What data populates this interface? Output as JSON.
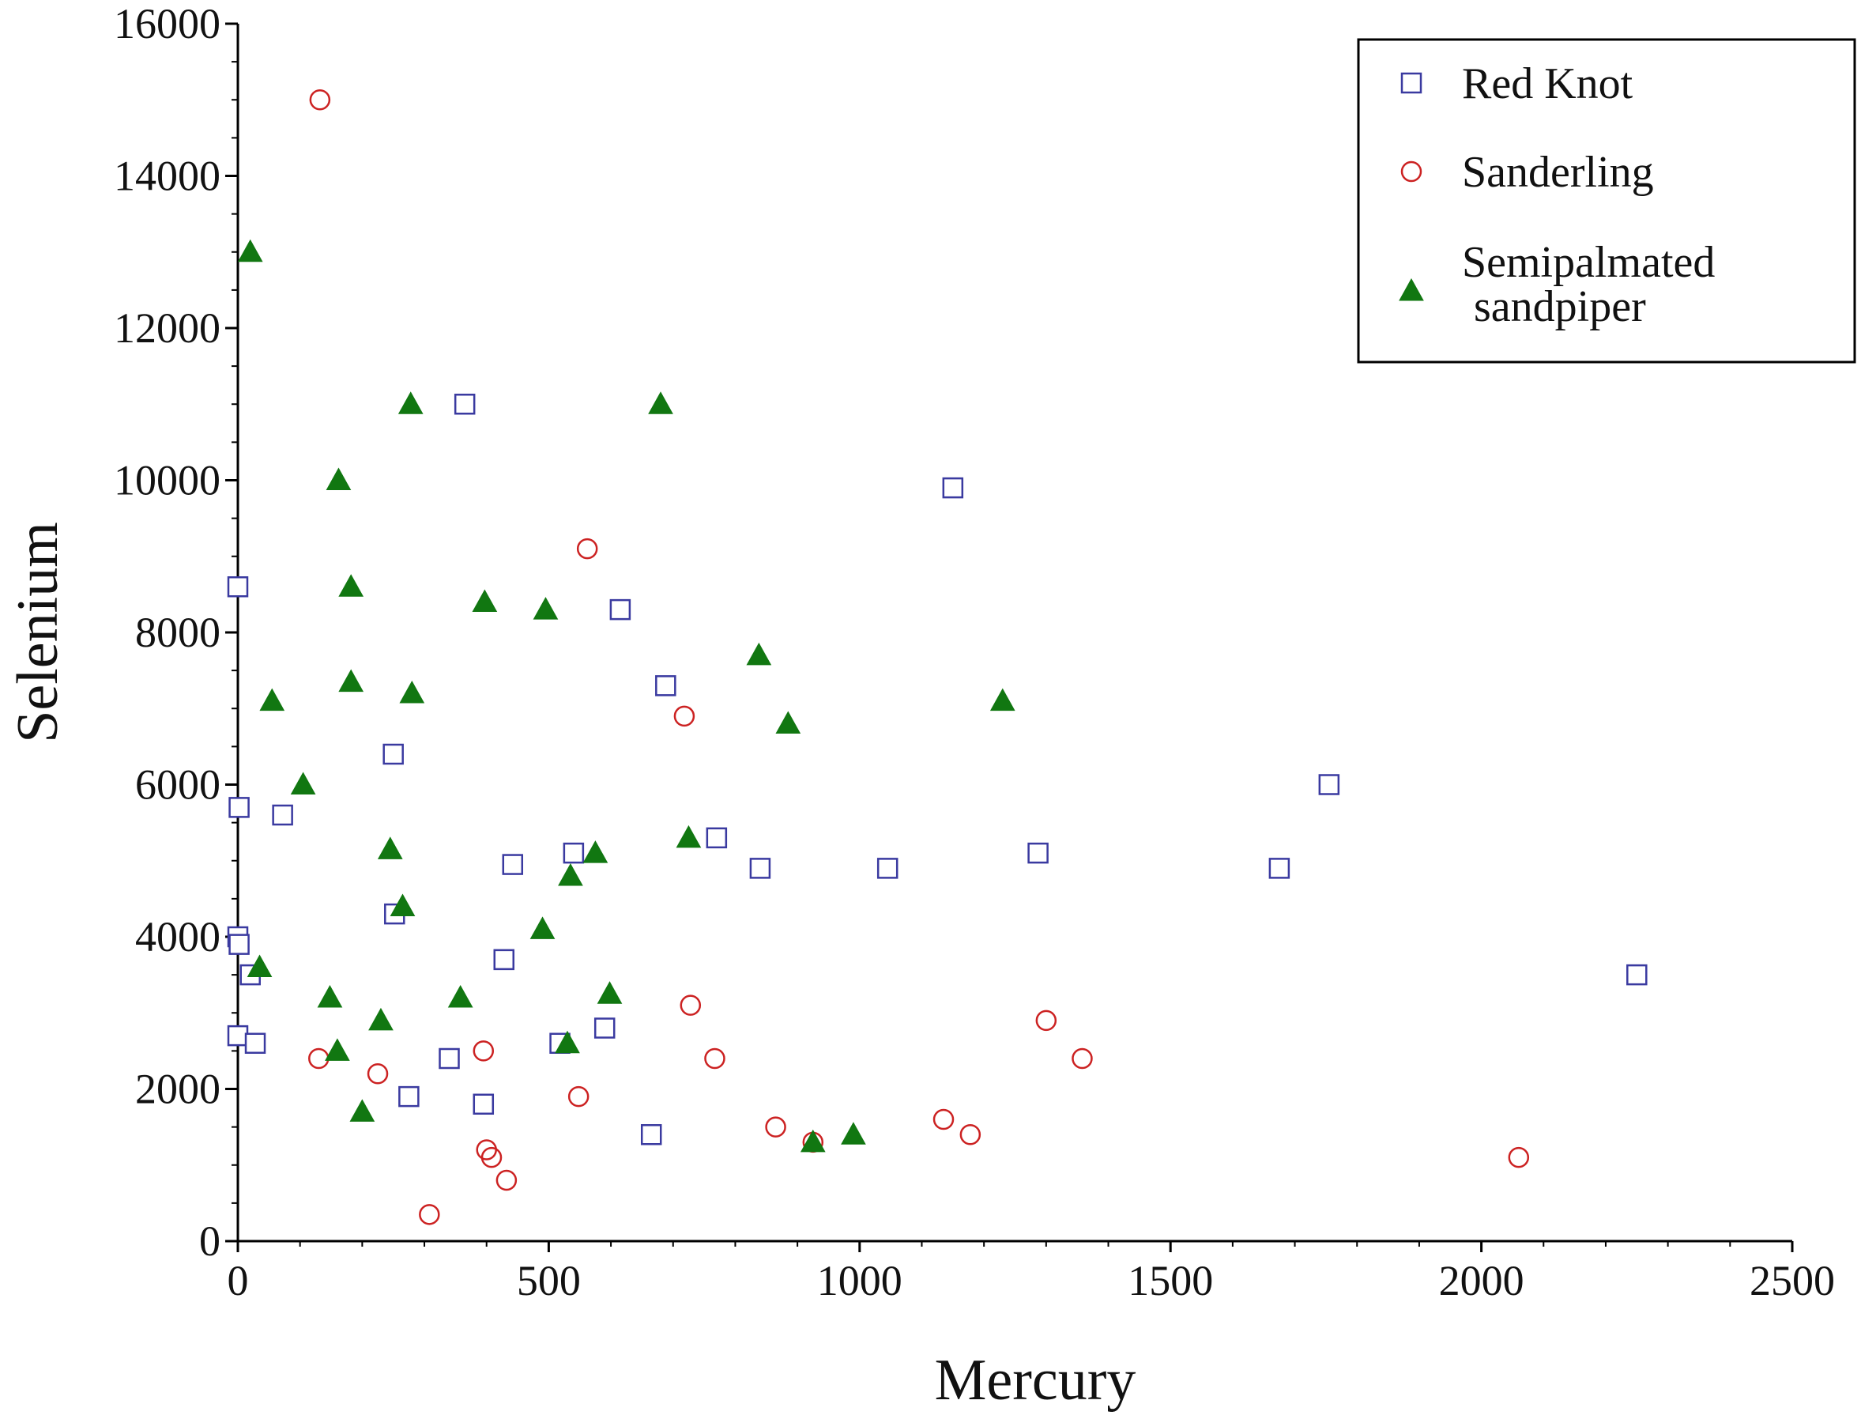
{
  "chart_data": {
    "type": "scatter",
    "title": "",
    "xlabel": "Mercury",
    "ylabel": "Selenium",
    "xlim": [
      0,
      2500
    ],
    "ylim": [
      0,
      16000
    ],
    "xticks": [
      0,
      500,
      1000,
      1500,
      2000,
      2500
    ],
    "yticks": [
      0,
      2000,
      4000,
      6000,
      8000,
      10000,
      12000,
      14000,
      16000
    ],
    "grid": false,
    "legend_position": "top-right",
    "series": [
      {
        "name": "Red Knot",
        "marker": "square-open",
        "color": "#3a3aa0",
        "points": [
          [
            0,
            8600
          ],
          [
            2,
            5700
          ],
          [
            0,
            4000
          ],
          [
            2,
            3900
          ],
          [
            20,
            3500
          ],
          [
            0,
            2700
          ],
          [
            28,
            2600
          ],
          [
            72,
            5600
          ],
          [
            250,
            6400
          ],
          [
            252,
            4300
          ],
          [
            275,
            1900
          ],
          [
            340,
            2400
          ],
          [
            365,
            11000
          ],
          [
            395,
            1800
          ],
          [
            428,
            3700
          ],
          [
            442,
            4950
          ],
          [
            518,
            2600
          ],
          [
            540,
            5100
          ],
          [
            590,
            2800
          ],
          [
            615,
            8300
          ],
          [
            665,
            1400
          ],
          [
            688,
            7300
          ],
          [
            770,
            5300
          ],
          [
            840,
            4900
          ],
          [
            1045,
            4900
          ],
          [
            1150,
            9900
          ],
          [
            1287,
            5100
          ],
          [
            1675,
            4900
          ],
          [
            1755,
            6000
          ],
          [
            2250,
            3500
          ]
        ]
      },
      {
        "name": "Sanderling",
        "marker": "circle-open",
        "color": "#cc2222",
        "points": [
          [
            130,
            2400
          ],
          [
            132,
            15000
          ],
          [
            225,
            2200
          ],
          [
            308,
            350
          ],
          [
            395,
            2500
          ],
          [
            400,
            1200
          ],
          [
            408,
            1100
          ],
          [
            432,
            800
          ],
          [
            548,
            1900
          ],
          [
            562,
            9100
          ],
          [
            718,
            6900
          ],
          [
            728,
            3100
          ],
          [
            767,
            2400
          ],
          [
            865,
            1500
          ],
          [
            925,
            1300
          ],
          [
            1135,
            1600
          ],
          [
            1178,
            1400
          ],
          [
            1300,
            2900
          ],
          [
            1358,
            2400
          ],
          [
            2060,
            1100
          ]
        ]
      },
      {
        "name": "Semipalmated sandpiper",
        "legend_lines": [
          "Semipalmated",
          "sandpiper"
        ],
        "marker": "triangle-filled",
        "color": "#117711",
        "points": [
          [
            20,
            13000
          ],
          [
            35,
            3600
          ],
          [
            55,
            7100
          ],
          [
            105,
            6000
          ],
          [
            148,
            3200
          ],
          [
            160,
            2500
          ],
          [
            162,
            10000
          ],
          [
            182,
            8600
          ],
          [
            182,
            7350
          ],
          [
            200,
            1700
          ],
          [
            230,
            2900
          ],
          [
            245,
            5150
          ],
          [
            265,
            4400
          ],
          [
            278,
            11000
          ],
          [
            280,
            7200
          ],
          [
            358,
            3200
          ],
          [
            397,
            8400
          ],
          [
            490,
            4100
          ],
          [
            495,
            8300
          ],
          [
            530,
            2600
          ],
          [
            535,
            4800
          ],
          [
            575,
            5100
          ],
          [
            598,
            3250
          ],
          [
            680,
            11000
          ],
          [
            725,
            5300
          ],
          [
            838,
            7700
          ],
          [
            885,
            6800
          ],
          [
            925,
            1300
          ],
          [
            990,
            1400
          ],
          [
            1230,
            7100
          ]
        ]
      }
    ]
  }
}
